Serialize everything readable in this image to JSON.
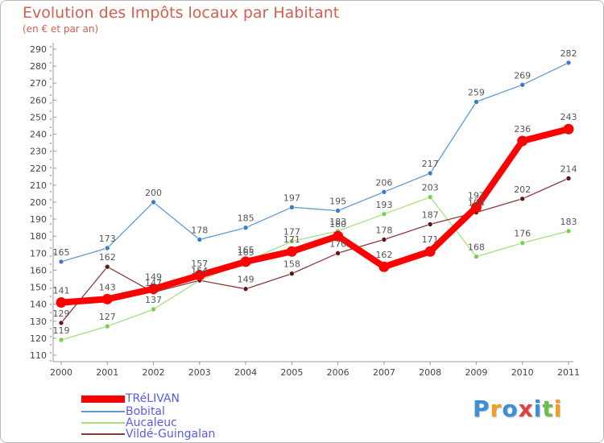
{
  "chart_data": {
    "type": "line",
    "title": "Evolution des Impôts locaux par Habitant",
    "subtitle": "(en € et par an)",
    "xlabel": "",
    "ylabel": "",
    "x": [
      "2000",
      "2001",
      "2002",
      "2003",
      "2004",
      "2005",
      "2006",
      "2007",
      "2008",
      "2009",
      "2010",
      "2011"
    ],
    "ylim": [
      110,
      290
    ],
    "yticks": [
      110,
      120,
      130,
      140,
      150,
      160,
      170,
      180,
      190,
      200,
      210,
      220,
      230,
      240,
      250,
      260,
      270,
      280,
      290
    ],
    "grid": false,
    "legend_position": "bottom-left",
    "series": [
      {
        "name": "Bobital",
        "color": "#5d9bd3",
        "point_color": "#3a7dc4",
        "values": [
          165,
          173,
          200,
          178,
          185,
          197,
          195,
          206,
          217,
          259,
          269,
          282
        ],
        "labels": [
          "165",
          "173",
          "200",
          "178",
          "185",
          "197",
          "195",
          "206",
          "217",
          "259",
          "269",
          "282"
        ]
      },
      {
        "name": "Aucaleuc",
        "color": "#a6e07e",
        "point_color": "#7fcf4e",
        "values": [
          119,
          127,
          137,
          154,
          165,
          177,
          183,
          193,
          203,
          168,
          176,
          183
        ],
        "labels": [
          "119",
          "127",
          "137",
          "154",
          "165",
          "177",
          "183",
          "193",
          "203",
          "168",
          "176",
          "183"
        ]
      },
      {
        "name": "Vildé-Guingalan",
        "color": "#8b3a3a",
        "point_color": "#5a1a1a",
        "values": [
          129,
          162,
          147,
          154,
          149,
          158,
          170,
          178,
          187,
          194,
          202,
          214
        ],
        "labels": [
          "129",
          "162",
          "147",
          "154",
          "149",
          "158",
          "170",
          "178",
          "187",
          "194",
          "202",
          "214"
        ]
      },
      {
        "name": "TRéLIVAN",
        "color": "#ff0000",
        "point_color": "#ff0000",
        "values": [
          141,
          143,
          149,
          157,
          165,
          171,
          180,
          162,
          171,
          197,
          236,
          243
        ],
        "labels": [
          "141",
          "143",
          "149",
          "157",
          "165",
          "171",
          "180",
          "162",
          "171",
          "197",
          "236",
          "243"
        ],
        "emphasis": true
      }
    ]
  },
  "legend": [
    {
      "label": "TRéLIVAN",
      "color": "#ff0000"
    },
    {
      "label": "Bobital",
      "color": "#5d9bd3"
    },
    {
      "label": "Aucaleuc",
      "color": "#a6e07e"
    },
    {
      "label": "Vildé-Guingalan",
      "color": "#8b3a3a"
    }
  ],
  "logo": {
    "text": "Proxiti",
    "colors": [
      "#3a8fd8",
      "#f0a020",
      "#3a8fd8",
      "#e04040",
      "#3a8fd8",
      "#6cc04a",
      "#f0a020"
    ]
  }
}
